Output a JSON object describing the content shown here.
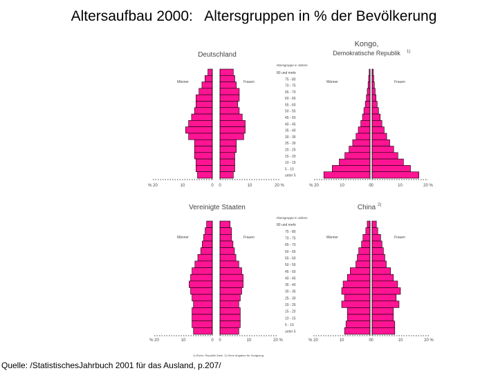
{
  "title": "Altersaufbau 2000:   Altersgruppen in % der Bevölkerung",
  "source": "Quelle: /StatistischesJahrbuch 2001 für das Ausland, p.207/",
  "footnote": "1) Ehem. Republik Zaire.  2) Ohne Angaben für Hongkong.",
  "colors": {
    "bar": "#ff1493",
    "axis": "#000000",
    "text": "#444444"
  },
  "chart_data": [
    {
      "type": "bar",
      "title": "Deutschland",
      "age_header": "Altersgruppe in Jahren",
      "categories": [
        "80 und mehr",
        "75 - 80",
        "70 - 75",
        "65 - 70",
        "60 - 65",
        "55 - 60",
        "50 - 55",
        "45 - 50",
        "40 - 45",
        "35 - 40",
        "30 - 35",
        "25 - 30",
        "20 - 25",
        "15 - 20",
        "10 - 15",
        "5 - 10",
        "unter 5"
      ],
      "series": [
        {
          "name": "Männer",
          "values": [
            1.5,
            2.5,
            3.5,
            4.5,
            5.5,
            5.5,
            6.0,
            7.0,
            8.0,
            9.0,
            8.0,
            6.0,
            6.0,
            6.0,
            5.5,
            5.5,
            5.0
          ]
        },
        {
          "name": "Frauen",
          "values": [
            4.5,
            5.0,
            5.5,
            6.5,
            6.5,
            6.0,
            6.5,
            7.5,
            8.5,
            8.5,
            8.0,
            5.5,
            5.5,
            5.0,
            5.0,
            5.0,
            4.5
          ]
        }
      ],
      "xlim": [
        0,
        20
      ],
      "male_ticks": [
        "% 20",
        "10",
        "0"
      ],
      "female_ticks": [
        "0",
        "10",
        "20 %"
      ]
    },
    {
      "type": "bar",
      "title": "Kongo,",
      "title2": "Demokratische Republik",
      "title_note": "1)",
      "categories": [
        "80 und mehr",
        "75 - 80",
        "70 - 75",
        "65 - 70",
        "60 - 65",
        "55 - 60",
        "50 - 55",
        "45 - 50",
        "40 - 45",
        "35 - 40",
        "30 - 35",
        "25 - 30",
        "20 - 25",
        "15 - 20",
        "10 - 15",
        "5 - 10",
        "unter 5"
      ],
      "series": [
        {
          "name": "Männer",
          "values": [
            0.3,
            0.5,
            0.7,
            1.0,
            1.3,
            1.7,
            2.2,
            2.7,
            3.3,
            4.2,
            5.0,
            6.2,
            7.5,
            9.0,
            11.0,
            13.5,
            16.5
          ]
        },
        {
          "name": "Frauen",
          "values": [
            0.4,
            0.6,
            0.8,
            1.1,
            1.4,
            1.8,
            2.3,
            2.9,
            3.5,
            4.3,
            5.2,
            6.3,
            7.7,
            9.2,
            11.2,
            13.7,
            16.7
          ]
        }
      ],
      "xlim": [
        0,
        20
      ],
      "male_ticks": [
        "% 20",
        "10",
        "0"
      ],
      "female_ticks": [
        "0",
        "10",
        "20 %"
      ]
    },
    {
      "type": "bar",
      "title": "Vereinigte Staaten",
      "age_header": "Altersgruppe in Jahren",
      "categories": [
        "80 und mehr",
        "75 - 80",
        "70 - 75",
        "65 - 70",
        "60 - 65",
        "55 - 60",
        "50 - 55",
        "45 - 50",
        "40 - 45",
        "35 - 40",
        "30 - 35",
        "25 - 30",
        "20 - 25",
        "15 - 20",
        "10 - 15",
        "5 - 10",
        "unter 5"
      ],
      "series": [
        {
          "name": "Männer",
          "values": [
            2.0,
            2.5,
            3.0,
            3.5,
            4.0,
            5.0,
            6.0,
            7.0,
            7.5,
            8.0,
            7.5,
            7.0,
            6.5,
            7.0,
            7.0,
            7.0,
            6.5
          ]
        },
        {
          "name": "Frauen",
          "values": [
            3.5,
            4.0,
            4.0,
            4.5,
            5.0,
            5.5,
            6.5,
            7.5,
            8.0,
            8.0,
            7.5,
            7.0,
            6.5,
            7.0,
            7.0,
            7.0,
            6.5
          ]
        }
      ],
      "xlim": [
        0,
        20
      ],
      "male_ticks": [
        "% 20",
        "10",
        "0"
      ],
      "female_ticks": [
        "0",
        "10",
        "20 %"
      ]
    },
    {
      "type": "bar",
      "title": "China",
      "title_note": "2)",
      "categories": [
        "80 und mehr",
        "75 - 80",
        "70 - 75",
        "65 - 70",
        "60 - 65",
        "55 - 60",
        "50 - 55",
        "45 - 50",
        "40 - 45",
        "35 - 40",
        "30 - 35",
        "25 - 30",
        "20 - 25",
        "15 - 20",
        "10 - 15",
        "5 - 10",
        "unter 5"
      ],
      "series": [
        {
          "name": "Männer",
          "values": [
            1.0,
            1.5,
            2.5,
            3.0,
            4.0,
            4.5,
            5.0,
            7.0,
            8.0,
            9.5,
            10.0,
            9.0,
            10.0,
            8.0,
            8.0,
            8.5,
            9.0
          ]
        },
        {
          "name": "Frauen",
          "values": [
            1.5,
            2.0,
            3.0,
            3.5,
            4.0,
            4.5,
            5.0,
            6.5,
            7.5,
            9.0,
            10.0,
            8.5,
            9.5,
            7.5,
            7.5,
            8.0,
            8.0
          ]
        }
      ],
      "xlim": [
        0,
        20
      ],
      "male_ticks": [
        "% 20",
        "10",
        "0"
      ],
      "female_ticks": [
        "0",
        "10",
        "20 %"
      ]
    }
  ]
}
